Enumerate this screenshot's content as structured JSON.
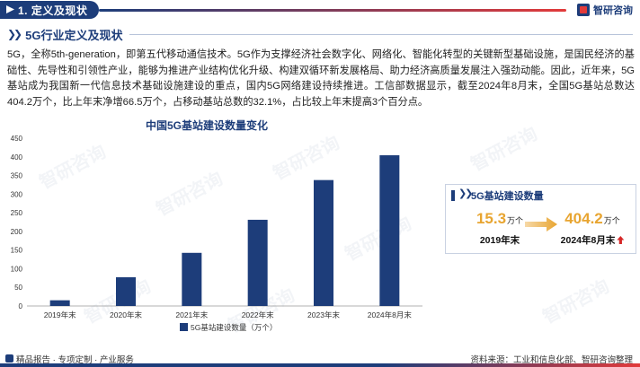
{
  "header": {
    "section_label": "1. 定义及现状",
    "brand": "智研咨询"
  },
  "subheading": "5G行业定义及现状",
  "paragraph": "5G，全称5th-generation，即第五代移动通信技术。5G作为支撑经济社会数字化、网络化、智能化转型的关键新型基础设施，是国民经济的基础性、先导性和引领性产业，能够为推进产业结构优化升级、构建双循环新发展格局、助力经济高质量发展注入强劲动能。因此，近年来，5G基站成为我国新一代信息技术基础设施建设的重点，国内5G网络建设持续推进。工信部数据显示，截至2024年8月末，全国5G基站总数达404.2万个，比上年末净增66.5万个，占移动基站总数的32.1%，占比较上年末提高3个百分点。",
  "chart_data": {
    "type": "bar",
    "title": "中国5G基站建设数量变化",
    "categories": [
      "2019年末",
      "2020年末",
      "2021年末",
      "2022年末",
      "2023年末",
      "2024年8月末"
    ],
    "series": [
      {
        "name": "5G基站建设数量（万个）",
        "values": [
          15.3,
          77.1,
          142.5,
          231.2,
          337.7,
          404.2
        ]
      }
    ],
    "ylim": [
      0,
      450
    ],
    "yticks": [
      0,
      50,
      100,
      150,
      200,
      250,
      300,
      350,
      400,
      450
    ],
    "grid": false,
    "legend_position": "bottom",
    "bar_color": "#1d3d7a"
  },
  "callout": {
    "title": "5G基站建设数量",
    "left_value": "15.3",
    "left_unit": "万个",
    "left_label": "2019年末",
    "right_value": "404.2",
    "right_unit": "万个",
    "right_label": "2024年8月末",
    "trend_icon": "up-arrow-icon"
  },
  "footer": {
    "left_text": "精品报告 · 专项定制 · 产业服务",
    "right_text": "资料来源：工业和信息化部、智研咨询整理"
  },
  "watermark": "智研咨询",
  "colors": {
    "primary": "#1d3d7a",
    "accent": "#e23a3a",
    "highlight": "#e8a531"
  }
}
